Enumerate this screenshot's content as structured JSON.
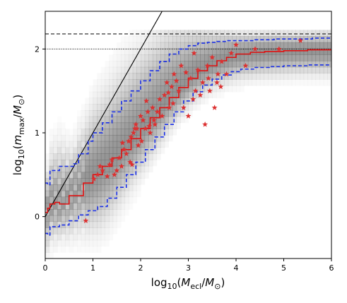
{
  "chart_data": {
    "type": "scatter",
    "xlabel": {
      "prefix": "log",
      "sub": "10",
      "open": "(",
      "var": "M",
      "var_sub": "ecl",
      "slash": "/",
      "unit": "M",
      "unit_sub": "⊙",
      "close": ")"
    },
    "ylabel": {
      "prefix": "log",
      "sub": "10",
      "open": "(",
      "var": "m",
      "var_sub": "max",
      "slash": "/",
      "unit": "M",
      "unit_sub": "⊙",
      "close": ")"
    },
    "xlim": [
      0,
      6
    ],
    "ylim": [
      -0.5,
      2.45
    ],
    "x_ticks": [
      "0",
      "1",
      "2",
      "3",
      "4",
      "5",
      "6"
    ],
    "y_ticks": [
      "0",
      "1",
      "2"
    ],
    "grid": false,
    "legend": "none",
    "colors": {
      "median": "#e01010",
      "bounds": "#1a2fe6",
      "stars": "#dc3030",
      "identity": "#000000",
      "density": "#6b6b6b"
    },
    "reference_lines": [
      {
        "y": 2.18,
        "style": "dashed"
      },
      {
        "y": 2.0,
        "style": "dotted"
      }
    ],
    "identity_line": {
      "x": [
        0,
        2.6
      ],
      "y": [
        0,
        2.6
      ]
    },
    "median": {
      "x": [
        0,
        0.05,
        0.1,
        0.2,
        0.3,
        0.5,
        0.8,
        1.0,
        1.2,
        1.4,
        1.6,
        1.8,
        2.0,
        2.2,
        2.4,
        2.6,
        2.8,
        3.0,
        3.2,
        3.4,
        3.6,
        3.8,
        4.0,
        4.3,
        4.6,
        5.0,
        5.5,
        6.0
      ],
      "y": [
        0.05,
        0.1,
        0.15,
        0.17,
        0.15,
        0.25,
        0.4,
        0.5,
        0.6,
        0.7,
        0.8,
        0.93,
        1.05,
        1.18,
        1.3,
        1.42,
        1.54,
        1.65,
        1.74,
        1.8,
        1.86,
        1.9,
        1.94,
        1.96,
        1.97,
        1.98,
        1.99,
        1.99
      ]
    },
    "upper_bound": {
      "x": [
        0,
        0.05,
        0.1,
        0.3,
        0.5,
        0.6,
        0.7,
        0.9,
        1.0,
        1.2,
        1.4,
        1.6,
        1.8,
        2.0,
        2.2,
        2.4,
        2.6,
        2.8,
        3.0,
        3.2,
        3.4,
        3.6,
        3.8,
        4.0,
        4.4,
        4.8,
        5.2,
        5.6,
        6.0
      ],
      "y": [
        0.4,
        0.38,
        0.55,
        0.6,
        0.6,
        0.63,
        0.75,
        0.9,
        1.0,
        1.12,
        1.25,
        1.38,
        1.5,
        1.62,
        1.74,
        1.85,
        1.94,
        2.0,
        2.04,
        2.07,
        2.08,
        2.09,
        2.1,
        2.1,
        2.11,
        2.12,
        2.12,
        2.13,
        2.13
      ]
    },
    "lower_bound": {
      "x": [
        0,
        0.05,
        0.1,
        0.3,
        0.5,
        0.7,
        0.9,
        1.1,
        1.3,
        1.5,
        1.7,
        1.9,
        2.1,
        2.3,
        2.5,
        2.7,
        2.9,
        3.1,
        3.3,
        3.5,
        3.7,
        3.9,
        4.1,
        4.4,
        4.7,
        5.0,
        5.5,
        6.0
      ],
      "y": [
        -0.2,
        -0.22,
        -0.12,
        -0.1,
        -0.05,
        0.02,
        0.07,
        0.12,
        0.22,
        0.35,
        0.5,
        0.65,
        0.8,
        0.95,
        1.1,
        1.25,
        1.38,
        1.49,
        1.57,
        1.64,
        1.69,
        1.73,
        1.76,
        1.78,
        1.79,
        1.8,
        1.81,
        1.81
      ]
    },
    "stars": {
      "x": [
        0.85,
        1.02,
        1.1,
        1.2,
        1.3,
        1.35,
        1.45,
        1.5,
        1.55,
        1.6,
        1.65,
        1.7,
        1.75,
        1.8,
        1.82,
        1.85,
        1.9,
        1.95,
        2.0,
        2.05,
        2.1,
        2.15,
        2.2,
        2.25,
        2.3,
        2.35,
        2.4,
        2.5,
        2.55,
        2.6,
        2.65,
        2.7,
        2.8,
        2.85,
        2.9,
        3.0,
        3.05,
        3.1,
        3.15,
        3.2,
        3.3,
        3.35,
        3.4,
        3.45,
        3.5,
        3.55,
        3.6,
        3.7,
        3.8,
        3.9,
        4.0,
        4.2,
        4.4,
        4.9,
        5.35,
        1.15,
        1.4,
        1.62,
        1.78,
        1.88,
        2.02,
        2.12,
        2.28,
        2.45,
        2.68,
        2.75,
        3.25,
        3.42,
        3.62,
        3.68,
        2.95,
        1.92,
        2.18,
        2.58,
        3.12
      ],
      "y": [
        -0.05,
        0.45,
        0.5,
        0.55,
        0.48,
        0.62,
        0.5,
        0.55,
        0.7,
        0.6,
        0.8,
        0.75,
        0.9,
        0.95,
        0.62,
        1.0,
        1.1,
        0.85,
        1.2,
        1.15,
        1.05,
        1.25,
        1.0,
        1.3,
        1.1,
        1.25,
        1.4,
        1.45,
        1.6,
        1.3,
        1.55,
        1.7,
        1.5,
        1.8,
        1.3,
        1.2,
        1.65,
        1.4,
        1.5,
        1.75,
        1.6,
        1.1,
        1.8,
        1.5,
        1.9,
        1.3,
        1.6,
        1.85,
        1.7,
        1.95,
        2.05,
        1.8,
        2.0,
        2.0,
        2.1,
        0.6,
        0.68,
        0.88,
        0.65,
        1.05,
        0.9,
        1.38,
        1.15,
        1.2,
        1.35,
        1.62,
        1.45,
        1.65,
        1.7,
        1.55,
        1.72,
        1.05,
        1.08,
        1.48,
        1.95
      ]
    },
    "density_grid": {
      "x_bins": 72,
      "y_bins": 40,
      "x_range": [
        0,
        6
      ],
      "y_range": [
        -0.5,
        2.45
      ]
    }
  }
}
